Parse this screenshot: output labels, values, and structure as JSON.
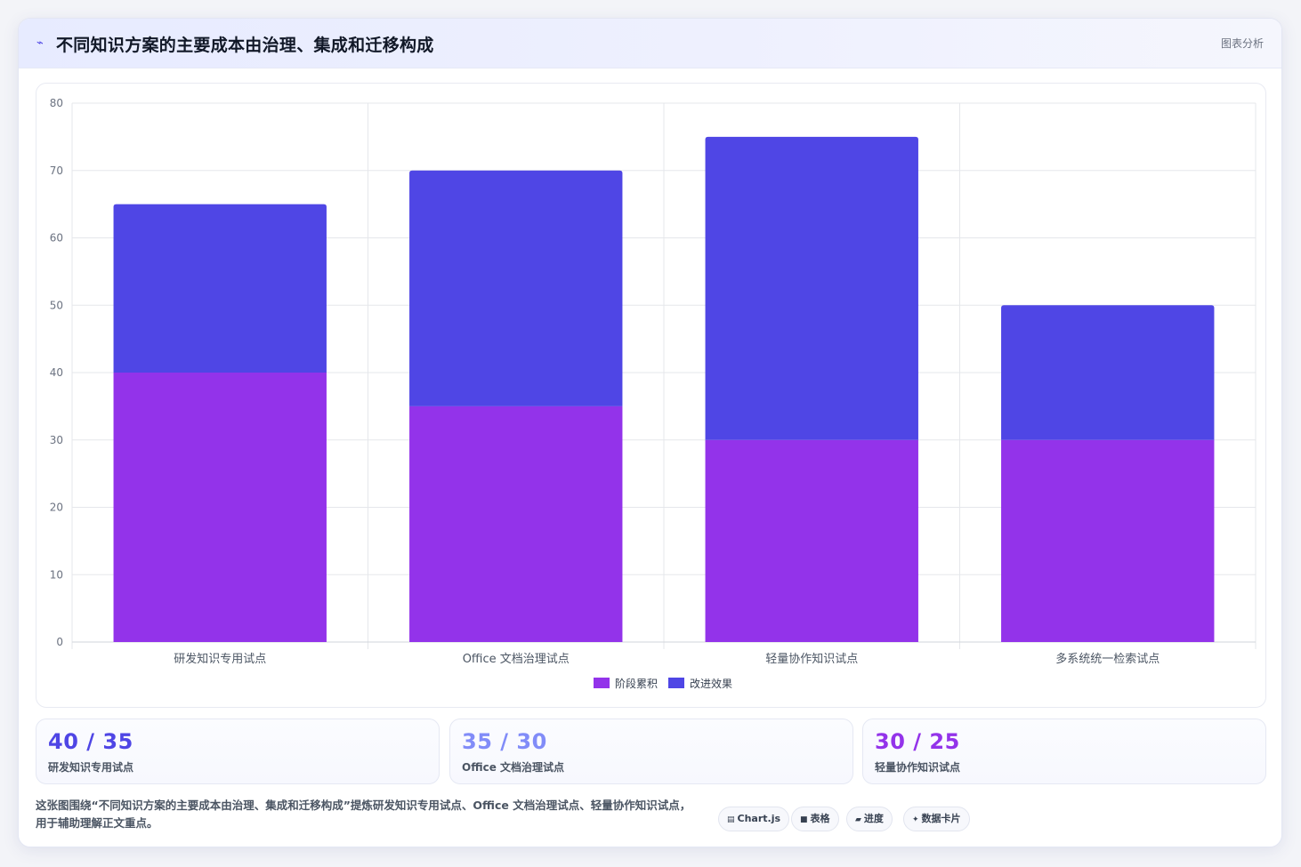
{
  "header": {
    "icon": "trend-line-icon",
    "title": "不同知识方案的主要成本由治理、集成和迁移构成",
    "tag": "图表分析"
  },
  "chart_data": {
    "type": "bar",
    "stacked": true,
    "categories": [
      "研发知识专用试点",
      "Office 文档治理试点",
      "轻量协作知识试点",
      "多系统统一检索试点"
    ],
    "series": [
      {
        "name": "阶段累积",
        "values": [
          40,
          35,
          30,
          30
        ],
        "color": "#9333ea"
      },
      {
        "name": "改进效果",
        "values": [
          25,
          35,
          45,
          20
        ],
        "color": "#4f46e5"
      }
    ],
    "ylim": [
      0,
      80
    ],
    "yticks": [
      0,
      10,
      20,
      30,
      40,
      50,
      60,
      70,
      80
    ],
    "grid": true,
    "legend_position": "bottom"
  },
  "stats": [
    {
      "value": "40 / 35",
      "label": "研发知识专用试点",
      "color": "#4f46e5"
    },
    {
      "value": "35 / 30",
      "label": "Office 文档治理试点",
      "color": "#818cf8"
    },
    {
      "value": "30 / 25",
      "label": "轻量协作知识试点",
      "color": "#9333ea"
    }
  ],
  "footer": {
    "note": "这张图围绕“不同知识方案的主要成本由治理、集成和迁移构成”提炼研发知识专用试点、Office 文档治理试点、轻量协作知识试点，用于辅助理解正文重点。"
  },
  "chips": [
    {
      "icon": "chart-icon",
      "glyph": "▤",
      "label": "Chart.js"
    },
    {
      "icon": "table-icon",
      "glyph": "■",
      "label": "表格"
    },
    {
      "icon": "progress-icon",
      "glyph": "▰",
      "label": "进度"
    },
    {
      "icon": "data-card-icon",
      "glyph": "✦",
      "label": "数据卡片"
    }
  ]
}
